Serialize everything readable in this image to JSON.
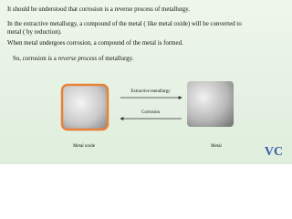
{
  "slide": {
    "lines": [
      "It should be understood that corrosion is a reverse process of metallurgy.",
      "In the extractive metallurgy, a compound of the metal ( like metal oxide) will be converted to",
      "metal ( by reduction).",
      "When metal undergoes corrosion, a  compound of the  metal is formed."
    ],
    "summary": {
      "before": "So, corrosion is a ",
      "emphasis": "reverse process ",
      "after": "of metallurgy."
    },
    "diagram": {
      "left_label": "Metal oxide",
      "right_label": "Metal",
      "top_arrow_label": "Extractive metallurgy",
      "bottom_arrow_label": "Corrosion"
    },
    "logo": "VC"
  }
}
